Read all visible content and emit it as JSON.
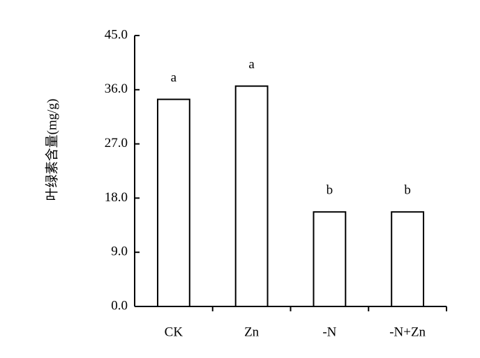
{
  "chart_data": {
    "type": "bar",
    "y_label": "叶绿素含量(mg/g)",
    "categories": [
      "CK",
      "Zn",
      "-N",
      "-N+Zn"
    ],
    "values": [
      34.4,
      36.6,
      15.7,
      15.7
    ],
    "annotations": [
      "a",
      "a",
      "b",
      "b"
    ],
    "color": "#ffffff",
    "ylim": [
      0,
      45
    ],
    "yticks": [
      {
        "value": 0,
        "label": "0.0"
      },
      {
        "value": 9,
        "label": "9.0"
      },
      {
        "value": 18,
        "label": "18.0"
      },
      {
        "value": 27,
        "label": "27.0"
      },
      {
        "value": 36,
        "label": "36.0"
      },
      {
        "value": 45,
        "label": "45.0"
      }
    ],
    "grid": false
  }
}
